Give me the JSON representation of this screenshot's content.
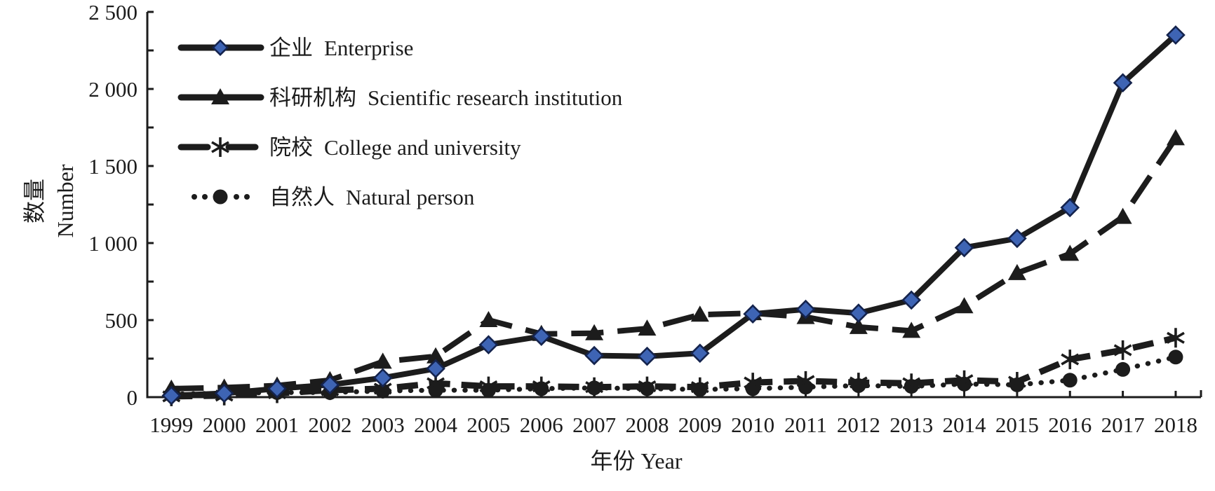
{
  "figure": {
    "background": "#ffffff",
    "ink_color": "#1c1c1c",
    "accent_blue": "#3e64b4",
    "diamond_border": "#14234d"
  },
  "chart_data": {
    "type": "line",
    "title": "",
    "xlabel": "年份 Year",
    "ylabel_zh": "数量",
    "ylabel_en": "Number",
    "ylim": [
      0,
      2500
    ],
    "grid": false,
    "legend_position": "top-left-inside",
    "x": [
      1999,
      2000,
      2001,
      2002,
      2003,
      2004,
      2005,
      2006,
      2007,
      2008,
      2009,
      2010,
      2011,
      2012,
      2013,
      2014,
      2015,
      2016,
      2017,
      2018
    ],
    "x_tick_labels": [
      "1999",
      "2000",
      "2001",
      "2002",
      "2003",
      "2004",
      "2005",
      "2006",
      "2007",
      "2008",
      "2009",
      "2010",
      "2011",
      "2012",
      "2013",
      "2014",
      "2015",
      "2016",
      "2017",
      "2018"
    ],
    "y_major_ticks": [
      0,
      500,
      1000,
      1500,
      2000,
      2500
    ],
    "y_tick_labels": [
      "0",
      "500",
      "1 000",
      "1 500",
      "2 000",
      "2 500"
    ],
    "y_minor_tick_step": 250,
    "series": [
      {
        "key": "enterprise",
        "name_zh": "企业",
        "name_en": "Enterprise",
        "marker": "diamond",
        "line": "solid",
        "color": "#1c1c1c",
        "marker_fill": "#3e64b4",
        "values": [
          10,
          25,
          55,
          80,
          125,
          185,
          340,
          395,
          270,
          265,
          285,
          540,
          570,
          545,
          630,
          970,
          1030,
          1230,
          2040,
          2350
        ]
      },
      {
        "key": "scientific-research-institution",
        "name_zh": "科研机构",
        "name_en": "Scientific research institution",
        "marker": "triangle",
        "line": "long-dash",
        "color": "#1c1c1c",
        "marker_fill": "#1c1c1c",
        "values": [
          55,
          62,
          75,
          110,
          230,
          265,
          500,
          410,
          415,
          445,
          535,
          545,
          520,
          455,
          430,
          590,
          805,
          930,
          1170,
          1680
        ]
      },
      {
        "key": "college-and-university",
        "name_zh": "院校",
        "name_en": "College and university",
        "marker": "asterisk",
        "line": "dash",
        "color": "#1c1c1c",
        "marker_fill": "#1c1c1c",
        "values": [
          5,
          10,
          25,
          45,
          55,
          90,
          70,
          70,
          65,
          70,
          65,
          95,
          105,
          95,
          90,
          110,
          100,
          245,
          305,
          385
        ]
      },
      {
        "key": "natural-person",
        "name_zh": "自然人",
        "name_en": "Natural person",
        "marker": "circle",
        "line": "dot",
        "color": "#1c1c1c",
        "marker_fill": "#1c1c1c",
        "values": [
          20,
          25,
          30,
          30,
          40,
          45,
          45,
          55,
          60,
          55,
          50,
          55,
          65,
          75,
          70,
          85,
          80,
          110,
          180,
          260
        ]
      }
    ]
  }
}
